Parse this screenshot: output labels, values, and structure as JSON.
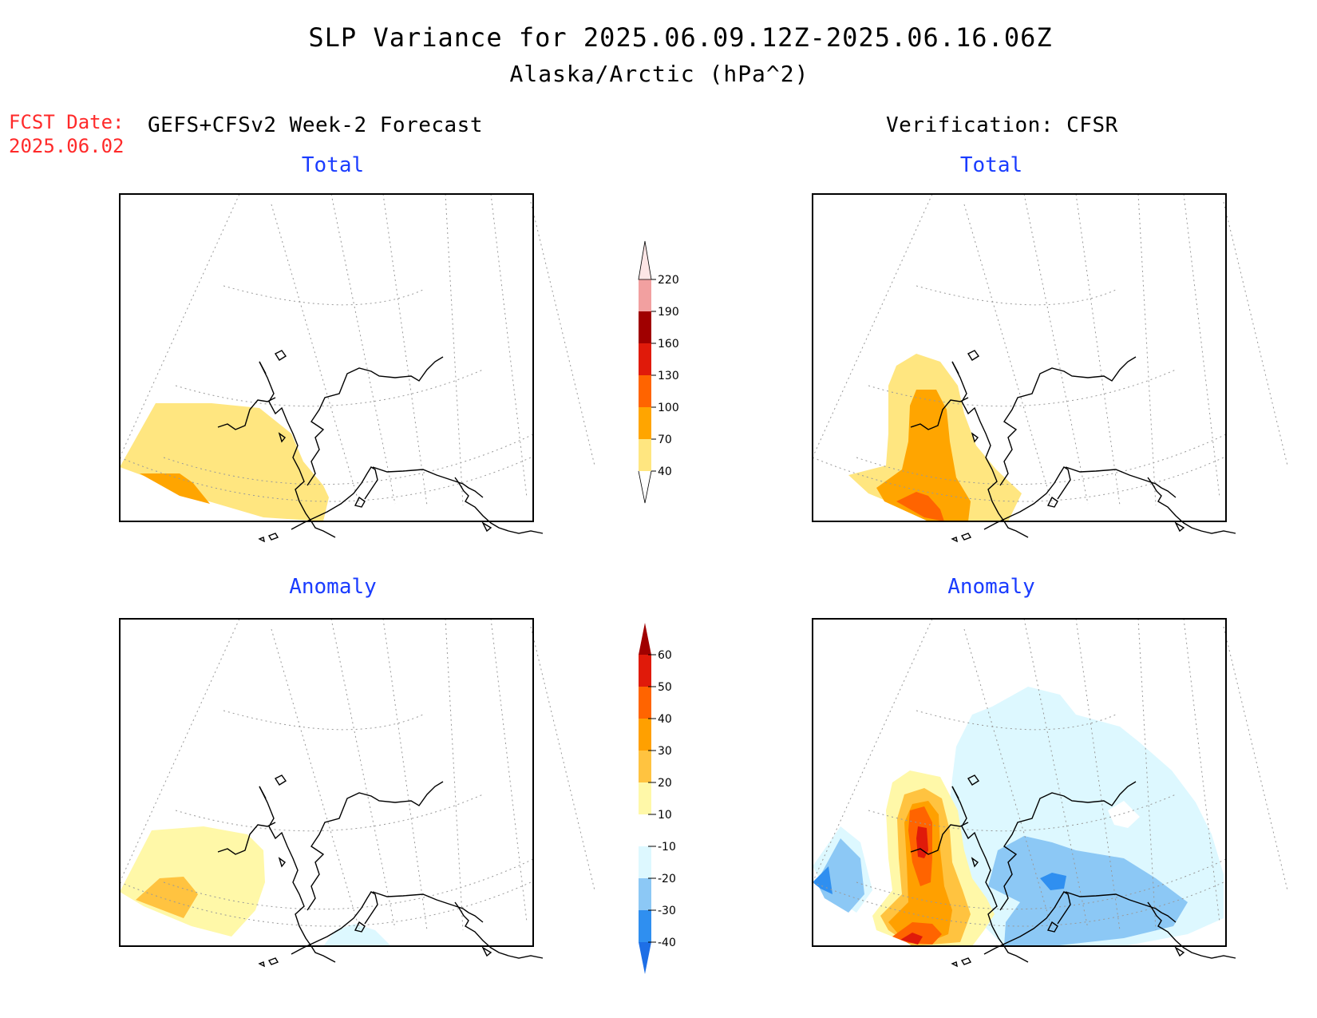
{
  "title": {
    "line1": "SLP Variance for 2025.06.09.12Z-2025.06.16.06Z",
    "line2": "Alaska/Arctic (hPa^2)"
  },
  "fcst_date": {
    "label": "FCST Date:",
    "value": "2025.06.02"
  },
  "left_column_header": "GEFS+CFSv2 Week-2 Forecast",
  "right_column_header": "Verification: CFSR",
  "panels": [
    {
      "id": "forecast-total",
      "title": "Total"
    },
    {
      "id": "verification-total",
      "title": "Total"
    },
    {
      "id": "forecast-anomaly",
      "title": "Anomaly"
    },
    {
      "id": "verification-anomaly",
      "title": "Anomaly"
    }
  ],
  "total_colorbar": {
    "labels": [
      "40",
      "70",
      "100",
      "130",
      "160",
      "190",
      "220"
    ],
    "colors": [
      "#ffe680",
      "#ffa500",
      "#ff6400",
      "#e01a0a",
      "#a00000",
      "#f2a0a0",
      "#fde6e6"
    ]
  },
  "anomaly_colorbar": {
    "labels": [
      "-40",
      "-30",
      "-20",
      "-10",
      "10",
      "20",
      "30",
      "40",
      "50",
      "60"
    ],
    "colors": [
      "#1e6fe6",
      "#2f8ff0",
      "#8cc8f5",
      "#ddf8ff",
      "#ffffff",
      "#fff8a8",
      "#ffc340",
      "#ffa000",
      "#ff6400",
      "#e01a0a",
      "#a00000"
    ]
  },
  "map_colors": {
    "total_40_70": "#ffe680",
    "total_70_100": "#ffa500",
    "total_100_130": "#ff6400",
    "anom_10_20": "#fff8a8",
    "anom_20_30": "#ffc340",
    "anom_30_40": "#ffa000",
    "anom_40_50": "#ff6400",
    "anom_50_60": "#e01a0a",
    "anom_m10_m20": "#ddf8ff",
    "anom_m20_m30": "#8cc8f5",
    "anom_m30_m40": "#2f8ff0"
  }
}
